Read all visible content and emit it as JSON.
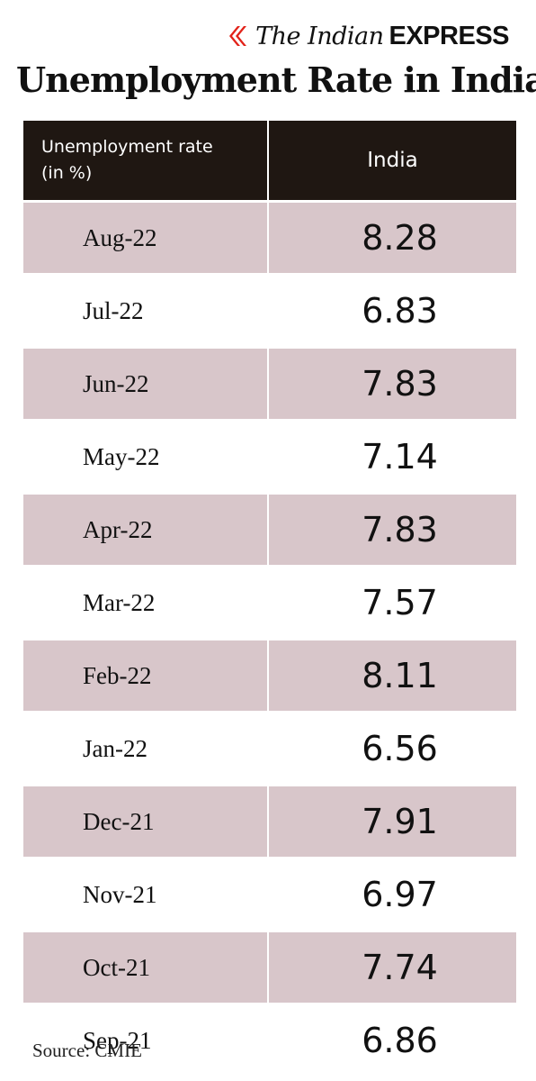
{
  "brand": {
    "the": "The Indian",
    "express": "EXPRESS"
  },
  "title": "Unemployment Rate in India",
  "source": "Source: CMIE",
  "colors": {
    "header_bg": "#1f1712",
    "row_shade": "#d8c6ca",
    "brand_red": "#e2231a"
  },
  "icons": {
    "brand_mark": "red-chevron-logo-icon"
  },
  "chart_data": {
    "type": "table",
    "title": "Unemployment Rate in India",
    "columns": [
      "Unemployment rate\n(in %)",
      "India"
    ],
    "rows": [
      {
        "month": "Aug-22",
        "value": "8.28"
      },
      {
        "month": "Jul-22",
        "value": "6.83"
      },
      {
        "month": "Jun-22",
        "value": "7.83"
      },
      {
        "month": "May-22",
        "value": "7.14"
      },
      {
        "month": "Apr-22",
        "value": "7.83"
      },
      {
        "month": "Mar-22",
        "value": "7.57"
      },
      {
        "month": "Feb-22",
        "value": "8.11"
      },
      {
        "month": "Jan-22",
        "value": "6.56"
      },
      {
        "month": "Dec-21",
        "value": "7.91"
      },
      {
        "month": "Nov-21",
        "value": "6.97"
      },
      {
        "month": "Oct-21",
        "value": "7.74"
      },
      {
        "month": "Sep-21",
        "value": "6.86"
      }
    ]
  }
}
